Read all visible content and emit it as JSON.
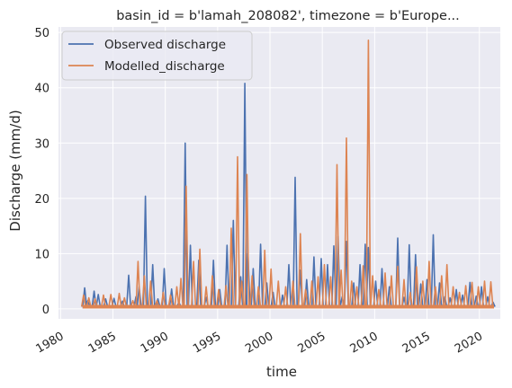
{
  "chart_data": {
    "type": "line",
    "title": "basin_id = b'lamah_208082', timezone = b'Europe...",
    "xlabel": "time",
    "ylabel": "Discharge (mm/d)",
    "xlim": [
      1979.8,
      2022.0
    ],
    "ylim": [
      -1.8,
      51.0
    ],
    "x_ticks": [
      1980,
      1985,
      1990,
      1995,
      2000,
      2005,
      2010,
      2015,
      2020
    ],
    "x_tick_labels": [
      "1980",
      "1985",
      "1990",
      "1995",
      "2000",
      "2005",
      "2010",
      "2015",
      "2020"
    ],
    "y_ticks": [
      0,
      10,
      20,
      30,
      40,
      50
    ],
    "y_tick_labels": [
      "0",
      "10",
      "20",
      "30",
      "40",
      "50"
    ],
    "grid": true,
    "legend_position": "top-left",
    "colors": {
      "observed": "#4c72b0",
      "modelled": "#dd8452",
      "background": "#eaeaf2",
      "grid": "#ffffff"
    },
    "series": [
      {
        "name": "Observed discharge",
        "key": "observed",
        "x": [
          1982.3,
          1982.6,
          1983.2,
          1983.6,
          1984.3,
          1985.1,
          1985.9,
          1986.5,
          1987.2,
          1987.5,
          1988.1,
          1988.8,
          1989.3,
          1989.9,
          1990.6,
          1991.3,
          1991.9,
          1992.4,
          1993.2,
          1993.9,
          1994.6,
          1995.2,
          1995.9,
          1996.5,
          1997.2,
          1997.6,
          1997.9,
          1998.4,
          1999.1,
          1999.7,
          2000.3,
          2001.2,
          2001.8,
          2002.4,
          2002.9,
          2003.5,
          2004.2,
          2004.9,
          2005.5,
          2006.1,
          2006.5,
          2006.9,
          2007.3,
          2008.0,
          2008.6,
          2009.1,
          2009.4,
          2010.1,
          2010.7,
          2011.4,
          2012.2,
          2012.8,
          2013.3,
          2013.9,
          2014.4,
          2015.0,
          2015.6,
          2016.2,
          2016.7,
          2017.2,
          2017.8,
          2018.4,
          2019.1,
          2019.7,
          2020.2,
          2020.8,
          2021.3
        ],
        "y": [
          3.8,
          1.5,
          3.2,
          2.6,
          1.8,
          1.9,
          1.4,
          6.1,
          2.2,
          4.0,
          20.4,
          8.0,
          1.8,
          7.3,
          3.6,
          1.2,
          30.0,
          11.5,
          8.8,
          2.1,
          8.8,
          3.5,
          11.5,
          16.0,
          5.8,
          40.8,
          10.0,
          7.3,
          11.7,
          4.7,
          3.0,
          2.5,
          8.0,
          23.8,
          7.0,
          5.3,
          9.4,
          9.1,
          8.0,
          11.4,
          13.1,
          2.2,
          12.2,
          4.7,
          8.0,
          11.7,
          11.1,
          5.0,
          7.3,
          4.0,
          12.8,
          2.1,
          11.6,
          9.8,
          4.5,
          5.3,
          13.4,
          4.7,
          2.2,
          2.0,
          3.5,
          2.5,
          4.8,
          2.3,
          4.0,
          2.2,
          1.2
        ]
      },
      {
        "name": "Modelled_discharge",
        "key": "modelled",
        "x": [
          1982.2,
          1982.7,
          1983.3,
          1984.1,
          1984.8,
          1985.6,
          1986.1,
          1986.9,
          1987.4,
          1988.0,
          1988.6,
          1989.2,
          1989.8,
          1990.5,
          1991.1,
          1991.5,
          1992.0,
          1992.7,
          1993.3,
          1993.9,
          1994.5,
          1995.1,
          1995.8,
          1996.3,
          1996.9,
          1997.3,
          1997.8,
          1998.3,
          1998.9,
          1999.5,
          2000.1,
          2000.8,
          2001.5,
          2002.2,
          2002.9,
          2003.4,
          2004.0,
          2004.6,
          2005.2,
          2005.8,
          2006.4,
          2006.8,
          2007.3,
          2007.8,
          2008.3,
          2008.9,
          2009.4,
          2009.8,
          2010.4,
          2011.0,
          2011.6,
          2012.2,
          2012.8,
          2013.4,
          2014.0,
          2014.6,
          2015.2,
          2015.8,
          2016.4,
          2016.9,
          2017.5,
          2018.1,
          2018.7,
          2019.3,
          2019.9,
          2020.5,
          2021.1
        ],
        "y": [
          2.5,
          2.0,
          1.8,
          2.5,
          2.6,
          2.8,
          2.0,
          1.5,
          8.6,
          6.0,
          5.0,
          1.5,
          3.0,
          2.5,
          4.0,
          5.5,
          22.2,
          8.6,
          10.8,
          4.0,
          6.0,
          3.5,
          4.2,
          14.6,
          27.5,
          5.0,
          24.3,
          6.0,
          4.0,
          10.6,
          7.2,
          5.0,
          4.0,
          5.0,
          13.6,
          3.5,
          5.0,
          5.8,
          8.0,
          5.8,
          26.1,
          7.0,
          30.9,
          5.0,
          4.0,
          7.8,
          48.6,
          6.0,
          3.5,
          6.5,
          6.0,
          7.7,
          5.3,
          3.0,
          7.6,
          5.0,
          8.6,
          4.0,
          6.0,
          8.0,
          4.0,
          3.0,
          4.2,
          4.8,
          4.0,
          5.0,
          4.9
        ]
      }
    ]
  }
}
